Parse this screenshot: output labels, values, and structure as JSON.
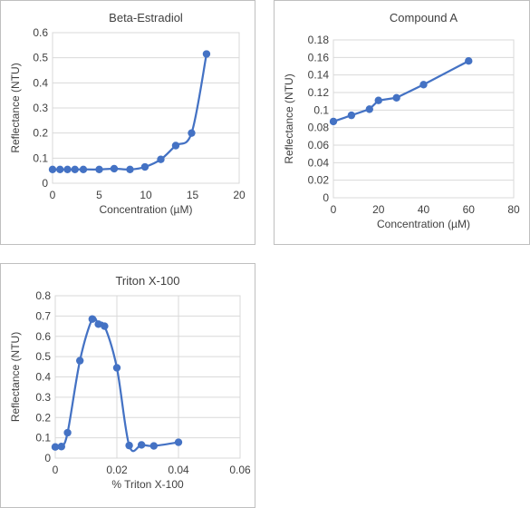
{
  "colors": {
    "series": "#4472c4",
    "text": "#404040",
    "grid": "#d9d9d9",
    "border": "#bfbfbf"
  },
  "chart_data": [
    {
      "type": "line",
      "title": "Beta-Estradiol",
      "xlabel": "Concentration (µM)",
      "ylabel": "Reflectance (NTU)",
      "xlim": [
        0,
        20
      ],
      "ylim": [
        0,
        0.6
      ],
      "xticks": [
        0,
        5,
        10,
        15,
        20
      ],
      "yticks": [
        0,
        0.1,
        0.2,
        0.3,
        0.4,
        0.5,
        0.6
      ],
      "x_tick_labels": [
        "0",
        "5",
        "10",
        "15",
        "20"
      ],
      "y_tick_labels": [
        "0",
        "0.1",
        "0.2",
        "0.3",
        "0.4",
        "0.5",
        "0.6"
      ],
      "grid": "horizontal",
      "smooth": true,
      "series": [
        {
          "x": [
            0,
            0.8,
            1.6,
            2.4,
            3.3,
            5,
            6.6,
            8.3,
            9.9,
            11.6,
            13.2,
            14.9,
            16.5
          ],
          "y": [
            0.055,
            0.055,
            0.055,
            0.055,
            0.055,
            0.055,
            0.058,
            0.055,
            0.065,
            0.095,
            0.15,
            0.2,
            0.515
          ]
        }
      ]
    },
    {
      "type": "line",
      "title": "Compound A",
      "xlabel": "Concentration (µM)",
      "ylabel": "Reflectance (NTU)",
      "xlim": [
        0,
        80
      ],
      "ylim": [
        0,
        0.18
      ],
      "xticks": [
        0,
        20,
        40,
        60,
        80
      ],
      "yticks": [
        0,
        0.02,
        0.04,
        0.06,
        0.08,
        0.1,
        0.12,
        0.14,
        0.16,
        0.18
      ],
      "x_tick_labels": [
        "0",
        "20",
        "40",
        "60",
        "80"
      ],
      "y_tick_labels": [
        "0",
        "0.02",
        "0.04",
        "0.06",
        "0.08",
        "0.1",
        "0.12",
        "0.14",
        "0.16",
        "0.18"
      ],
      "grid": "horizontal",
      "smooth": false,
      "series": [
        {
          "x": [
            0,
            8,
            16,
            20,
            28,
            40,
            60
          ],
          "y": [
            0.087,
            0.094,
            0.101,
            0.111,
            0.114,
            0.129,
            0.156
          ]
        }
      ]
    },
    {
      "type": "line",
      "title": "Triton X-100",
      "xlabel": "% Triton X-100",
      "ylabel": "Reflectance (NTU)",
      "xlim": [
        0,
        0.06
      ],
      "ylim": [
        0,
        0.8
      ],
      "xticks": [
        0,
        0.02,
        0.04,
        0.06
      ],
      "yticks": [
        0,
        0.1,
        0.2,
        0.3,
        0.4,
        0.5,
        0.6,
        0.7,
        0.8
      ],
      "x_tick_labels": [
        "0",
        "0.02",
        "0.04",
        "0.06"
      ],
      "y_tick_labels": [
        "0",
        "0.1",
        "0.2",
        "0.3",
        "0.4",
        "0.5",
        "0.6",
        "0.7",
        "0.8"
      ],
      "grid": "both",
      "smooth": true,
      "series": [
        {
          "x": [
            0,
            0.002,
            0.004,
            0.008,
            0.012,
            0.014,
            0.016,
            0.02,
            0.024,
            0.028,
            0.032,
            0.04
          ],
          "y": [
            0.055,
            0.057,
            0.125,
            0.48,
            0.685,
            0.66,
            0.65,
            0.445,
            0.062,
            0.065,
            0.06,
            0.078
          ]
        }
      ]
    }
  ]
}
